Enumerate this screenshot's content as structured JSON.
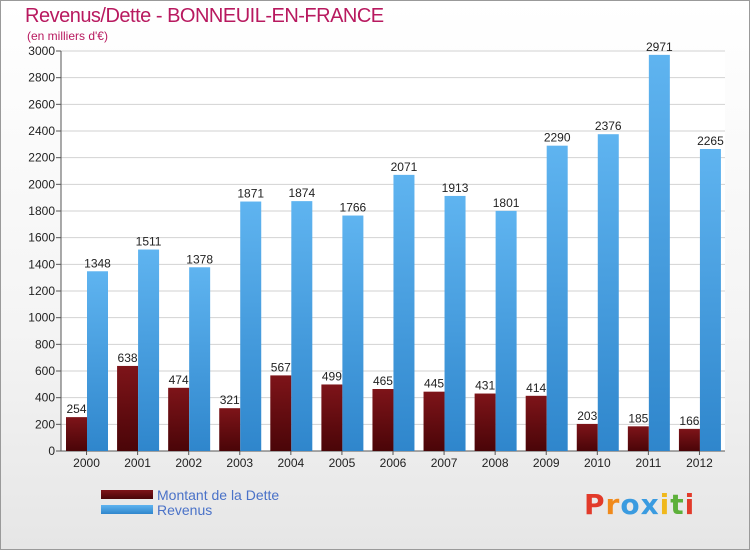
{
  "chart_data": {
    "type": "bar",
    "title": "Revenus/Dette - BONNEUIL-EN-FRANCE",
    "subtitle": "(en milliers d'€)",
    "categories": [
      "2000",
      "2001",
      "2002",
      "2003",
      "2004",
      "2005",
      "2006",
      "2007",
      "2008",
      "2009",
      "2010",
      "2011",
      "2012"
    ],
    "series": [
      {
        "name": "Montant de la Dette",
        "color": "#6b0b10",
        "values": [
          254,
          638,
          474,
          321,
          567,
          499,
          465,
          445,
          431,
          414,
          203,
          185,
          166
        ]
      },
      {
        "name": "Revenus",
        "color": "#4aa3e6",
        "values": [
          1348,
          1511,
          1378,
          1871,
          1874,
          1766,
          2071,
          1913,
          1801,
          2290,
          2376,
          2971,
          2265
        ]
      }
    ],
    "ylim": [
      0,
      3000
    ],
    "yticks": [
      0,
      200,
      400,
      600,
      800,
      1000,
      1200,
      1400,
      1600,
      1800,
      2000,
      2200,
      2400,
      2600,
      2800,
      3000
    ],
    "grid": true,
    "legend_position": "bottom-left"
  },
  "logo": {
    "text": "Proxiti",
    "letters": [
      "P",
      "r",
      "o",
      "x",
      "i",
      "t",
      "i"
    ],
    "colors": [
      "#e23a2a",
      "#f08a1c",
      "#3a9be0",
      "#3a9be0",
      "#f0b81c",
      "#5db03a",
      "#e23a2a"
    ]
  }
}
